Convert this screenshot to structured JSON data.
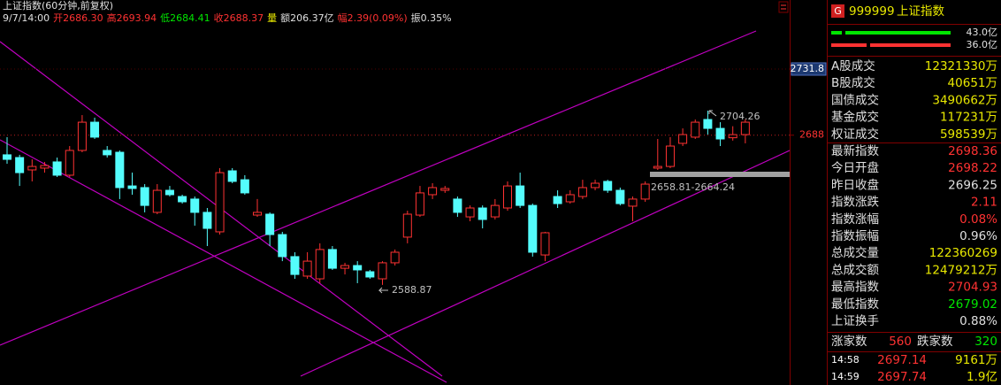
{
  "header": {
    "title": "上证指数(60分钟,前复权)",
    "info": [
      {
        "text": "9/7/14:00",
        "color": "#e0e0e0"
      },
      {
        "text": "开2686.30",
        "color": "#ff3232"
      },
      {
        "text": "高2693.94",
        "color": "#ff3232"
      },
      {
        "text": "低2684.41",
        "color": "#00e600"
      },
      {
        "text": "收2688.37",
        "color": "#ff3232"
      },
      {
        "text": "量",
        "color": "#e8e800"
      },
      {
        "text": "额206.37亿",
        "color": "#e0e0e0"
      },
      {
        "text": "幅2.39(0.09%)",
        "color": "#ff3232"
      },
      {
        "text": "振0.35%",
        "color": "#e0e0e0"
      }
    ]
  },
  "chart_data": {
    "type": "candlestick",
    "up_color": "#ff3232",
    "down_color": "#54fcfc",
    "ylim": [
      2522.6,
      2777.5
    ],
    "yticks": [
      2731.8,
      2688
    ],
    "grid": true,
    "open": [
      2675.0,
      2673.2,
      2665.0,
      2666.2,
      2670.3,
      2661.5,
      2677.9,
      2696.6,
      2677.9,
      2676.7,
      2654.4,
      2653.3,
      2636.9,
      2651.5,
      2647.4,
      2645.7,
      2636.9,
      2624.0,
      2664.4,
      2658.5,
      2635.1,
      2635.7,
      2622.2,
      2607.6,
      2594.7,
      2592.9,
      2612.3,
      2599.9,
      2601.7,
      2597.6,
      2592.9,
      2603.5,
      2620.5,
      2635.1,
      2648.6,
      2651.5,
      2645.7,
      2633.9,
      2639.8,
      2633.9,
      2639.8,
      2654.4,
      2641.5,
      2608.7,
      2647.4,
      2643.9,
      2647.4,
      2653.3,
      2657.4,
      2651.5,
      2641.0,
      2645.7,
      2666.2,
      2667.3,
      2682.6,
      2686.7,
      2698.4,
      2692.5,
      2686.3,
      2688.4
    ],
    "high": [
      2686.7,
      2675.0,
      2672.0,
      2670.3,
      2673.2,
      2680.8,
      2701.3,
      2699.6,
      2680.8,
      2677.9,
      2663.2,
      2655.6,
      2655.6,
      2654.4,
      2648.6,
      2647.4,
      2639.8,
      2666.2,
      2666.2,
      2661.5,
      2645.7,
      2636.9,
      2624.0,
      2610.5,
      2610.5,
      2616.4,
      2614.6,
      2603.5,
      2604.6,
      2598.8,
      2604.6,
      2612.3,
      2638.0,
      2654.4,
      2656.2,
      2654.4,
      2647.4,
      2641.5,
      2641.5,
      2645.7,
      2657.4,
      2663.2,
      2642.7,
      2624.0,
      2651.5,
      2651.5,
      2658.5,
      2658.5,
      2658.5,
      2653.3,
      2647.4,
      2657.4,
      2685.5,
      2686.7,
      2692.5,
      2698.4,
      2704.26,
      2696.6,
      2693.94,
      2698.4
    ],
    "low": [
      2669.1,
      2654.4,
      2657.4,
      2663.2,
      2660.3,
      2660.3,
      2676.7,
      2685.5,
      2673.2,
      2645.7,
      2648.6,
      2636.9,
      2635.7,
      2647.4,
      2642.7,
      2628.1,
      2614.6,
      2622.2,
      2656.2,
      2648.6,
      2633.9,
      2614.6,
      2604.6,
      2592.9,
      2592.9,
      2590.0,
      2598.8,
      2595.8,
      2590.0,
      2592.9,
      2588.87,
      2601.7,
      2616.4,
      2633.9,
      2645.7,
      2649.8,
      2633.9,
      2631.0,
      2626.3,
      2632.2,
      2638.0,
      2639.8,
      2607.6,
      2604.6,
      2639.8,
      2642.7,
      2645.7,
      2651.5,
      2649.8,
      2641.5,
      2631.0,
      2643.9,
      2665.0,
      2666.2,
      2680.8,
      2685.5,
      2688.4,
      2680.8,
      2684.41,
      2682.6
    ],
    "close": [
      2672.0,
      2663.2,
      2667.3,
      2667.9,
      2661.5,
      2677.9,
      2696.6,
      2686.7,
      2675.0,
      2653.3,
      2652.7,
      2641.5,
      2651.5,
      2648.6,
      2643.9,
      2636.9,
      2626.3,
      2663.2,
      2657.4,
      2649.8,
      2636.9,
      2622.2,
      2607.6,
      2595.8,
      2604.6,
      2612.3,
      2599.9,
      2601.7,
      2598.8,
      2594.1,
      2603.5,
      2610.5,
      2635.7,
      2649.8,
      2653.3,
      2652.7,
      2636.9,
      2639.8,
      2632.2,
      2641.5,
      2654.4,
      2641.5,
      2610.5,
      2623.4,
      2642.7,
      2648.6,
      2653.3,
      2656.2,
      2651.5,
      2642.7,
      2645.7,
      2655.6,
      2667.3,
      2680.8,
      2688.4,
      2696.6,
      2692.5,
      2685.5,
      2688.37,
      2696.6
    ],
    "annotations": [
      "2704.26",
      "2588.87",
      "2658.81-2664.24"
    ]
  },
  "panel": {
    "badge": "G",
    "code": "999999",
    "name": "上证指数",
    "volume_bars": [
      "43.0亿",
      "36.0亿"
    ],
    "rows": [
      {
        "label": "A股成交",
        "value": "12321330万",
        "color": "#e8e800"
      },
      {
        "label": "B股成交",
        "value": "40651万",
        "color": "#e8e800"
      },
      {
        "label": "国债成交",
        "value": "3490662万",
        "color": "#e8e800"
      },
      {
        "label": "基金成交",
        "value": "117231万",
        "color": "#e8e800"
      },
      {
        "label": "权证成交",
        "value": "598539万",
        "color": "#e8e800"
      },
      {
        "label": "最新指数",
        "value": "2698.36",
        "color": "#ff3232"
      },
      {
        "label": "今日开盘",
        "value": "2698.22",
        "color": "#ff3232"
      },
      {
        "label": "昨日收盘",
        "value": "2696.25",
        "color": "#e0e0e0"
      },
      {
        "label": "指数涨跌",
        "value": "2.11",
        "color": "#ff3232"
      },
      {
        "label": "指数涨幅",
        "value": "0.08%",
        "color": "#ff3232"
      },
      {
        "label": "指数振幅",
        "value": "0.96%",
        "color": "#e0e0e0"
      },
      {
        "label": "总成交量",
        "value": "122360269",
        "color": "#e8e800"
      },
      {
        "label": "总成交额",
        "value": "12479212万",
        "color": "#e8e800"
      },
      {
        "label": "最高指数",
        "value": "2704.93",
        "color": "#ff3232"
      },
      {
        "label": "最低指数",
        "value": "2679.02",
        "color": "#00e600"
      },
      {
        "label": "上证换手",
        "value": "0.88%",
        "color": "#e0e0e0"
      }
    ],
    "breadth": {
      "up_label": "涨家数",
      "up": "560",
      "down_label": "跌家数",
      "down": "320"
    },
    "trades": [
      [
        "14:58",
        "2697.14",
        "9161万"
      ],
      [
        "14:59",
        "2697.74",
        "1.9亿"
      ]
    ]
  }
}
